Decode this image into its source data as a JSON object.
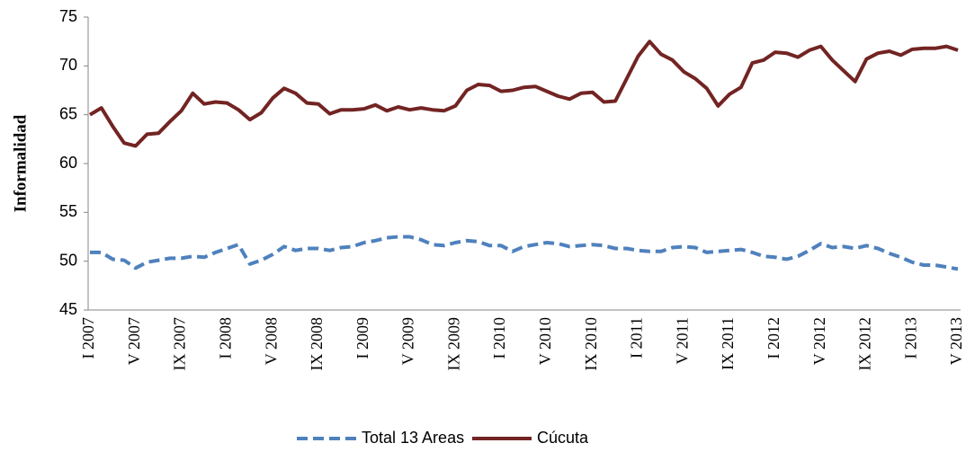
{
  "chart_data": {
    "type": "line",
    "y_label": "Informalidad",
    "categories": [
      "I 2007",
      null,
      null,
      null,
      "V 2007",
      null,
      null,
      null,
      "IX 2007",
      null,
      null,
      null,
      "I 2008",
      null,
      null,
      null,
      "V 2008",
      null,
      null,
      null,
      "IX 2008",
      null,
      null,
      null,
      "I 2009",
      null,
      null,
      null,
      "V 2009",
      null,
      null,
      null,
      "IX 2009",
      null,
      null,
      null,
      "I 2010",
      null,
      null,
      null,
      "V 2010",
      null,
      null,
      null,
      "IX 2010",
      null,
      null,
      null,
      "I 2011",
      null,
      null,
      null,
      "V 2011",
      null,
      null,
      null,
      "IX 2011",
      null,
      null,
      null,
      "I 2012",
      null,
      null,
      null,
      "V 2012",
      null,
      null,
      null,
      "IX 2012",
      null,
      null,
      null,
      "I 2013",
      null,
      null,
      null,
      "V 2013"
    ],
    "series": [
      {
        "name": "Total 13 Areas",
        "color": "#4f81bd",
        "line_style": "dashed",
        "values": [
          50.9,
          50.9,
          50.2,
          50.1,
          49.3,
          49.9,
          50.1,
          50.3,
          50.3,
          50.5,
          50.4,
          50.9,
          51.3,
          51.7,
          49.7,
          50.1,
          50.7,
          51.5,
          51.1,
          51.3,
          51.3,
          51.1,
          51.4,
          51.5,
          51.9,
          52.1,
          52.4,
          52.5,
          52.5,
          52.2,
          51.7,
          51.6,
          51.9,
          52.1,
          52.0,
          51.6,
          51.6,
          51.0,
          51.5,
          51.7,
          51.9,
          51.8,
          51.5,
          51.6,
          51.7,
          51.6,
          51.3,
          51.3,
          51.1,
          51.0,
          51.0,
          51.4,
          51.5,
          51.4,
          50.9,
          51.0,
          51.1,
          51.2,
          50.9,
          50.5,
          50.4,
          50.2,
          50.5,
          51.1,
          51.8,
          51.4,
          51.5,
          51.3,
          51.6,
          51.3,
          50.8,
          50.4,
          49.9,
          49.6,
          49.6,
          49.4,
          49.2
        ]
      },
      {
        "name": "Cúcuta",
        "color": "#722423",
        "line_style": "solid",
        "values": [
          65.0,
          65.7,
          63.8,
          62.1,
          61.8,
          63.0,
          63.1,
          64.3,
          65.4,
          67.2,
          66.1,
          66.3,
          66.2,
          65.5,
          64.5,
          65.2,
          66.7,
          67.7,
          67.2,
          66.2,
          66.1,
          65.1,
          65.5,
          65.5,
          65.6,
          66.0,
          65.4,
          65.8,
          65.5,
          65.7,
          65.5,
          65.4,
          65.9,
          67.5,
          68.1,
          68.0,
          67.4,
          67.5,
          67.8,
          67.9,
          67.4,
          66.9,
          66.6,
          67.2,
          67.3,
          66.3,
          66.4,
          68.7,
          71.0,
          72.5,
          71.2,
          70.6,
          69.4,
          68.7,
          67.7,
          65.9,
          67.1,
          67.8,
          70.3,
          70.6,
          71.4,
          71.3,
          70.9,
          71.6,
          72.0,
          70.6,
          69.5,
          68.4,
          70.7,
          71.3,
          71.5,
          71.1,
          71.7,
          71.8,
          71.8,
          72.0,
          71.6
        ]
      }
    ],
    "ylim": [
      45,
      75
    ],
    "yticks": [
      45,
      50,
      55,
      60,
      65,
      70,
      75
    ],
    "grid": false,
    "legend": "bottom"
  }
}
